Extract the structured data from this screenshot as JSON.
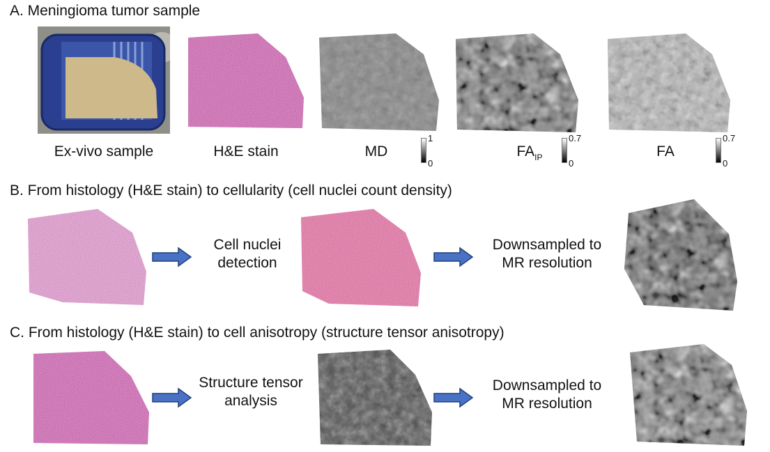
{
  "section_a": {
    "heading": "A. Meningioma tumor sample",
    "labels": {
      "exvivo": "Ex-vivo sample",
      "he": "H&E stain",
      "md": "MD",
      "faip_main": "FA",
      "faip_sub": "IP",
      "fa": "FA"
    },
    "colorbars": {
      "md": {
        "max": "1",
        "min": "0"
      },
      "faip": {
        "max": "0.7",
        "min": "0"
      },
      "fa": {
        "max": "0.7",
        "min": "0"
      }
    }
  },
  "section_b": {
    "heading": "B. From histology (H&E stain) to cellularity (cell nuclei count density)",
    "step1": [
      "Cell nuclei",
      "detection"
    ],
    "step2": [
      "Downsampled to",
      "MR resolution"
    ]
  },
  "section_c": {
    "heading": "C. From histology (H&E stain) to cell anisotropy (structure tensor anisotropy)",
    "step1": [
      "Structure tensor",
      "analysis"
    ],
    "step2": [
      "Downsampled to",
      "MR resolution"
    ]
  },
  "colors": {
    "arrow_fill": "#4a72c4",
    "arrow_stroke": "#1f3f7a",
    "he_pink": "#c97bb0",
    "nuclei_red": "#e0405a",
    "holder_blue": "#2a3f8f",
    "sample_tan": "#cdb98a"
  }
}
